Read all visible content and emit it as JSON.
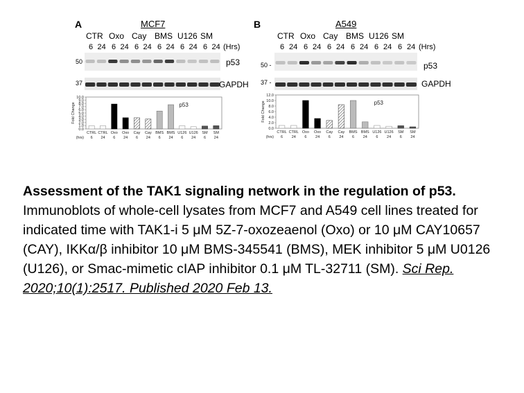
{
  "panels": [
    {
      "letter": "A",
      "cell_line": "MCF7",
      "treatments": [
        "CTR",
        "Oxo",
        "Cay",
        "BMS",
        "U126",
        "SM"
      ],
      "times": [
        "6",
        "24",
        "6",
        "24",
        "6",
        "24",
        "6",
        "24",
        "6",
        "24",
        "6",
        "24"
      ],
      "time_unit": "(Hrs)",
      "blots": [
        {
          "marker": "50 -",
          "protein": "p53"
        },
        {
          "marker": "37 -",
          "protein": "GAPDH"
        }
      ],
      "chart_data": {
        "type": "bar",
        "title": "p53",
        "ylabel": "Fold Change",
        "ylim": [
          0,
          10
        ],
        "yticks": [
          "0.0",
          "1.0",
          "2.0",
          "3.0",
          "4.0",
          "5.0",
          "6.0",
          "7.0",
          "8.0",
          "9.0",
          "10.0"
        ],
        "categories": [
          "CTRL",
          "CTRL",
          "Oxo",
          "Oxo",
          "Cay",
          "Cay",
          "BMS",
          "BMS",
          "U126",
          "U126",
          "SM",
          "SM"
        ],
        "times": [
          "6",
          "24",
          "6",
          "24",
          "6",
          "24",
          "6",
          "24",
          "6",
          "24",
          "6",
          "24"
        ],
        "time_label": "(hrs)",
        "values": [
          1.0,
          1.0,
          7.8,
          3.5,
          3.5,
          3.1,
          5.6,
          7.6,
          1.0,
          0.7,
          0.9,
          1.0
        ],
        "styles": [
          "open",
          "open",
          "solid",
          "solid",
          "hatch",
          "hatch",
          "gray",
          "gray",
          "open",
          "open",
          "dark",
          "dark"
        ]
      }
    },
    {
      "letter": "B",
      "cell_line": "A549",
      "treatments": [
        "CTR",
        "Oxo",
        "Cay",
        "BMS",
        "U126",
        "SM"
      ],
      "times": [
        "6",
        "24",
        "6",
        "24",
        "6",
        "24",
        "6",
        "24",
        "6",
        "24",
        "6",
        "24"
      ],
      "time_unit": "(Hrs)",
      "blots": [
        {
          "marker": "50 -",
          "protein": "p53"
        },
        {
          "marker": "37 -",
          "protein": "GAPDH"
        }
      ],
      "chart_data": {
        "type": "bar",
        "title": "p53",
        "ylabel": "Fold Change",
        "ylim": [
          0,
          12
        ],
        "yticks": [
          "0.0",
          "2.0",
          "4.0",
          "6.0",
          "8.0",
          "10.0",
          "12.0"
        ],
        "categories": [
          "CTRL",
          "CTRL",
          "Oxo",
          "Oxo",
          "Cay",
          "Cay",
          "BMS",
          "BMS",
          "U126",
          "U126",
          "SM",
          "SM"
        ],
        "times": [
          "6",
          "24",
          "6",
          "24",
          "6",
          "24",
          "6",
          "24",
          "6",
          "24",
          "6",
          "24"
        ],
        "time_label": "(hrs)",
        "values": [
          1.0,
          1.0,
          10.0,
          3.5,
          2.8,
          8.5,
          10.0,
          2.3,
          1.0,
          0.7,
          0.9,
          0.5
        ],
        "styles": [
          "open",
          "open",
          "solid",
          "solid",
          "hatch",
          "hatch",
          "gray",
          "gray",
          "open",
          "open",
          "dark",
          "dark"
        ]
      }
    }
  ],
  "caption": {
    "title": "Assessment of the TAK1 signaling network in the regulation of p53.",
    "body": "Immunoblots of whole-cell lysates from MCF7 and A549 cell lines treated for indicated time with TAK1-i 5 μM 5Z-7-oxozeaenol (Oxo) or 10 μM CAY10657 (CAY), IKKα/β inhibitor 10 μM BMS-345541 (BMS), MEK inhibitor 5 μM U0126 (U126), or Smac-mimetic cIAP inhibitor 0.1 μM TL-32711 (SM). ",
    "citation": "Sci Rep. 2020;10(1):2517. Published 2020 Feb 13."
  }
}
